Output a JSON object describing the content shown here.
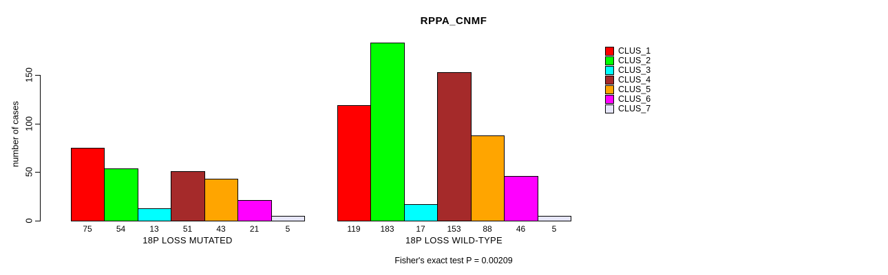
{
  "title": "RPPA_CNMF",
  "y_axis": {
    "label": "number of cases",
    "ticks": [
      0,
      50,
      100,
      150
    ]
  },
  "footnote": "Fisher's exact test P = 0.00209",
  "chart_data": {
    "type": "bar",
    "title": "RPPA_CNMF",
    "xlabel": "",
    "ylabel": "number of cases",
    "ylim": [
      0,
      183
    ],
    "yticks": [
      0,
      50,
      100,
      150
    ],
    "grid": false,
    "legend_position": "right",
    "categories": [
      "CLUS_1",
      "CLUS_2",
      "CLUS_3",
      "CLUS_4",
      "CLUS_5",
      "CLUS_6",
      "CLUS_7"
    ],
    "colors": [
      "#FF0000",
      "#00FF00",
      "#00FFFF",
      "#A52A2A",
      "#FFA500",
      "#FF00FF",
      "#E6E6FA"
    ],
    "groups": [
      {
        "label": "18P LOSS MUTATED",
        "values": [
          75,
          54,
          13,
          51,
          43,
          21,
          5
        ]
      },
      {
        "label": "18P LOSS WILD-TYPE",
        "values": [
          119,
          183,
          17,
          153,
          88,
          46,
          5
        ]
      }
    ],
    "bar_value_labels_shown": true,
    "annotation": "Fisher's exact test P = 0.00209"
  }
}
